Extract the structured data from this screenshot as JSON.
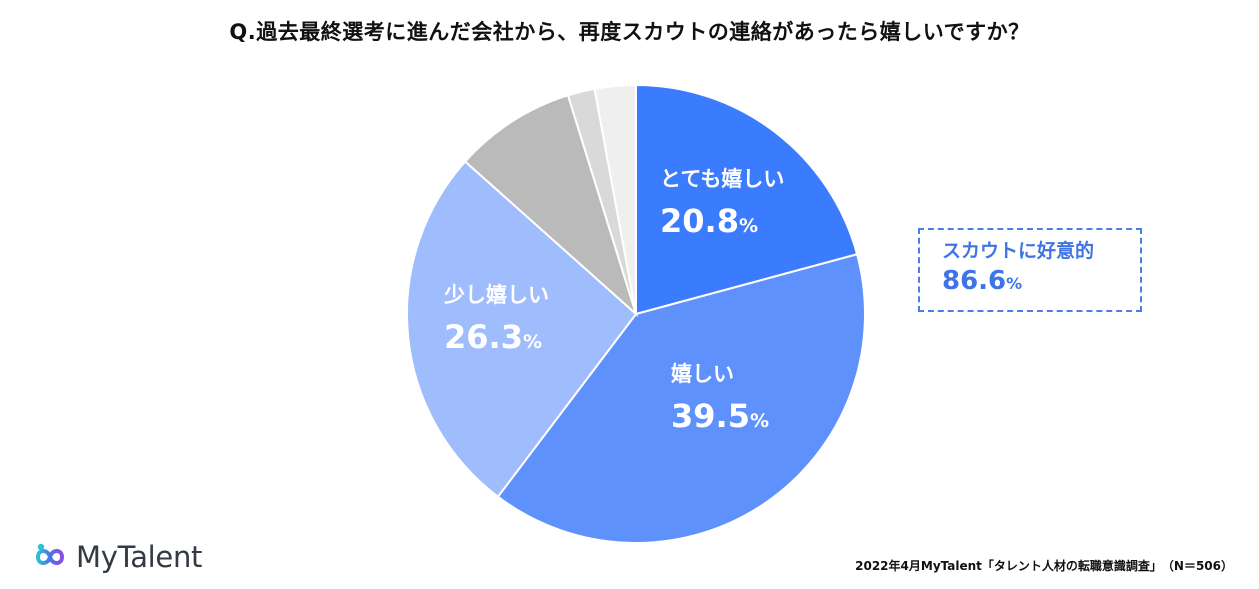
{
  "title": "Q.過去最終選考に進んだ会社から、再度スカウトの連絡があったら嬉しいですか？",
  "chart_data": {
    "type": "pie",
    "slices": [
      {
        "label": "とても嬉しい",
        "value": 20.8,
        "display": "20.8",
        "color": "#3b7bfe",
        "labeled": true
      },
      {
        "label": "嬉しい",
        "value": 39.5,
        "display": "39.5",
        "color": "#5f91fc",
        "labeled": true
      },
      {
        "label": "少し嬉しい",
        "value": 26.3,
        "display": "26.3",
        "color": "#9fbcfd",
        "labeled": true
      },
      {
        "label": "",
        "value": 8.6,
        "color": "#bababa",
        "labeled": false
      },
      {
        "label": "",
        "value": 1.9,
        "color": "#d9d9d9",
        "labeled": false
      },
      {
        "label": "",
        "value": 2.9,
        "color": "#efefef",
        "labeled": false
      }
    ],
    "unit": "%"
  },
  "callout": {
    "label": "スカウトに好意的",
    "value": "86.6",
    "unit": "%"
  },
  "logo": {
    "text": "MyTalent"
  },
  "source": "2022年4月MyTalent「タレント人材の転職意識調査」　（N＝506）"
}
